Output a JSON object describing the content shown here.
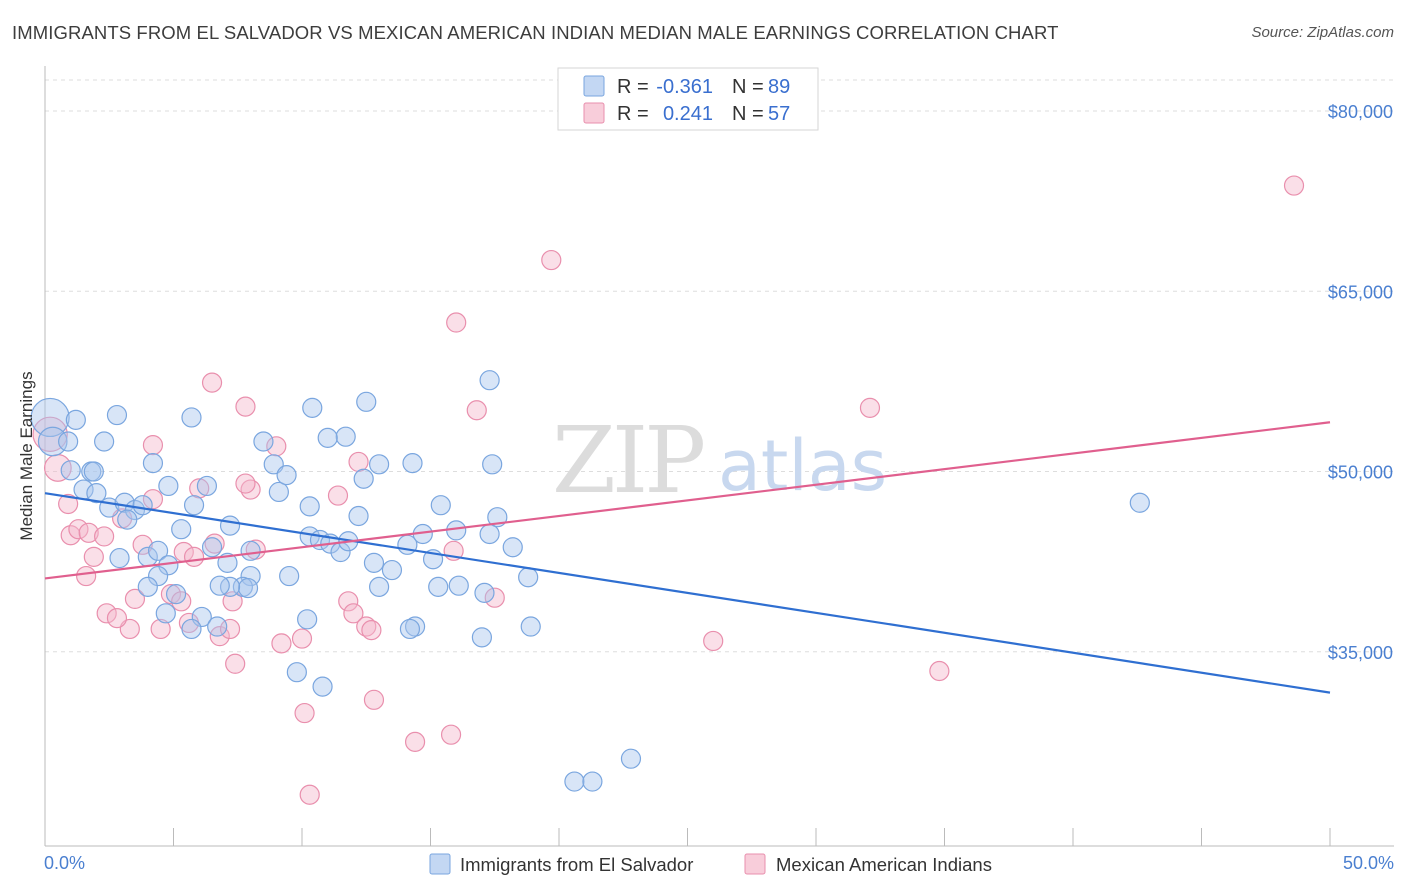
{
  "title": "IMMIGRANTS FROM EL SALVADOR VS MEXICAN AMERICAN INDIAN MEDIAN MALE EARNINGS CORRELATION CHART",
  "source": "Source: ZipAtlas.com",
  "watermark": {
    "zip": "ZIP",
    "atlas": "atlas"
  },
  "colors": {
    "blue_fill": "#a9c6ee",
    "blue_stroke": "#7aa6df",
    "blue_line": "#2f6fd1",
    "pink_fill": "#f5b8cb",
    "pink_stroke": "#e98fad",
    "pink_line": "#e05f8e",
    "grid": "#dddddd",
    "axis_text": "#4a7fd0"
  },
  "chart_data": {
    "type": "scatter",
    "title": "IMMIGRANTS FROM EL SALVADOR VS MEXICAN AMERICAN INDIAN MEDIAN MALE EARNINGS CORRELATION CHART",
    "xlabel": "",
    "ylabel": "Median Male Earnings",
    "xlim": [
      0,
      50
    ],
    "ylim": [
      20500,
      83000
    ],
    "x_tick_labels": {
      "left": "0.0%",
      "right": "50.0%"
    },
    "x_minor_ticks": [
      0,
      5,
      10,
      15,
      20,
      25,
      30,
      35,
      40,
      45,
      50
    ],
    "y_ticks": [
      {
        "value": 80000,
        "label": "$80,000"
      },
      {
        "value": 65000,
        "label": "$65,000"
      },
      {
        "value": 50000,
        "label": "$50,000"
      },
      {
        "value": 35000,
        "label": "$35,000"
      }
    ],
    "legend": [
      {
        "series": "Immigrants from El Salvador",
        "r_label": "R =",
        "r": "-0.361",
        "n_label": "N =",
        "n": "89"
      },
      {
        "series": "Mexican American Indians",
        "r_label": "R =",
        "r": "0.241",
        "n_label": "N =",
        "n": "57"
      }
    ],
    "series": [
      {
        "name": "Immigrants from El Salvador",
        "color": "blue",
        "trend": {
          "x0": 0,
          "y0": 48200,
          "x1": 50,
          "y1": 31600
        },
        "points": [
          {
            "x": 0.2,
            "y": 54500,
            "s": 2
          },
          {
            "x": 0.3,
            "y": 52500,
            "s": 1.5
          },
          {
            "x": 1.2,
            "y": 54300
          },
          {
            "x": 0.9,
            "y": 52500
          },
          {
            "x": 1.0,
            "y": 50100
          },
          {
            "x": 1.8,
            "y": 50000
          },
          {
            "x": 1.9,
            "y": 50000
          },
          {
            "x": 2.3,
            "y": 52500
          },
          {
            "x": 2.8,
            "y": 54700
          },
          {
            "x": 1.5,
            "y": 48500
          },
          {
            "x": 2.0,
            "y": 48200
          },
          {
            "x": 2.5,
            "y": 47000
          },
          {
            "x": 3.1,
            "y": 47400
          },
          {
            "x": 3.5,
            "y": 46800
          },
          {
            "x": 3.2,
            "y": 46000
          },
          {
            "x": 3.8,
            "y": 47200
          },
          {
            "x": 4.2,
            "y": 50700
          },
          {
            "x": 4.8,
            "y": 48800
          },
          {
            "x": 5.7,
            "y": 54500
          },
          {
            "x": 6.3,
            "y": 48800
          },
          {
            "x": 5.8,
            "y": 47200
          },
          {
            "x": 5.3,
            "y": 45200
          },
          {
            "x": 2.9,
            "y": 42800
          },
          {
            "x": 4.0,
            "y": 42900
          },
          {
            "x": 4.4,
            "y": 43400
          },
          {
            "x": 6.5,
            "y": 43700
          },
          {
            "x": 7.2,
            "y": 45500
          },
          {
            "x": 8.5,
            "y": 52500
          },
          {
            "x": 8.9,
            "y": 50600
          },
          {
            "x": 9.1,
            "y": 48300
          },
          {
            "x": 9.4,
            "y": 49700
          },
          {
            "x": 10.3,
            "y": 47100
          },
          {
            "x": 10.3,
            "y": 44600
          },
          {
            "x": 10.7,
            "y": 44300
          },
          {
            "x": 11.1,
            "y": 44000
          },
          {
            "x": 11.5,
            "y": 43300
          },
          {
            "x": 11.8,
            "y": 44200
          },
          {
            "x": 12.2,
            "y": 46300
          },
          {
            "x": 12.4,
            "y": 49400
          },
          {
            "x": 13.0,
            "y": 50600
          },
          {
            "x": 12.8,
            "y": 42400
          },
          {
            "x": 13.5,
            "y": 41800
          },
          {
            "x": 14.1,
            "y": 43900
          },
          {
            "x": 14.3,
            "y": 50700
          },
          {
            "x": 15.4,
            "y": 47200
          },
          {
            "x": 11.7,
            "y": 52900
          },
          {
            "x": 11.0,
            "y": 52800
          },
          {
            "x": 12.5,
            "y": 55800
          },
          {
            "x": 10.4,
            "y": 55300
          },
          {
            "x": 17.4,
            "y": 50600
          },
          {
            "x": 17.6,
            "y": 46200
          },
          {
            "x": 17.3,
            "y": 44800
          },
          {
            "x": 18.2,
            "y": 43700
          },
          {
            "x": 18.8,
            "y": 41200
          },
          {
            "x": 17.3,
            "y": 57600
          },
          {
            "x": 8.0,
            "y": 43400
          },
          {
            "x": 8.0,
            "y": 41300
          },
          {
            "x": 7.7,
            "y": 40400
          },
          {
            "x": 7.9,
            "y": 40300
          },
          {
            "x": 7.2,
            "y": 40400
          },
          {
            "x": 6.8,
            "y": 40500
          },
          {
            "x": 6.1,
            "y": 37900
          },
          {
            "x": 6.7,
            "y": 37100
          },
          {
            "x": 5.7,
            "y": 36900
          },
          {
            "x": 4.8,
            "y": 42200
          },
          {
            "x": 4.4,
            "y": 41300
          },
          {
            "x": 4.7,
            "y": 38200
          },
          {
            "x": 4.0,
            "y": 40400
          },
          {
            "x": 5.1,
            "y": 39800
          },
          {
            "x": 7.1,
            "y": 42400
          },
          {
            "x": 9.5,
            "y": 41300
          },
          {
            "x": 10.2,
            "y": 37700
          },
          {
            "x": 14.7,
            "y": 44800
          },
          {
            "x": 15.3,
            "y": 40400
          },
          {
            "x": 16.0,
            "y": 45100
          },
          {
            "x": 15.1,
            "y": 42700
          },
          {
            "x": 14.4,
            "y": 37100
          },
          {
            "x": 14.2,
            "y": 36900
          },
          {
            "x": 16.1,
            "y": 40500
          },
          {
            "x": 17.1,
            "y": 39900
          },
          {
            "x": 18.9,
            "y": 37100
          },
          {
            "x": 17.0,
            "y": 36200
          },
          {
            "x": 9.8,
            "y": 33300
          },
          {
            "x": 10.8,
            "y": 32100
          },
          {
            "x": 20.6,
            "y": 24200
          },
          {
            "x": 21.3,
            "y": 24200
          },
          {
            "x": 22.8,
            "y": 26100
          },
          {
            "x": 42.6,
            "y": 47400
          },
          {
            "x": 13.0,
            "y": 40400
          }
        ]
      },
      {
        "name": "Mexican American Indians",
        "color": "pink",
        "trend": {
          "x0": 0,
          "y0": 41100,
          "x1": 50,
          "y1": 54100
        },
        "points": [
          {
            "x": 0.2,
            "y": 53100,
            "s": 1.8
          },
          {
            "x": 0.5,
            "y": 50300,
            "s": 1.4
          },
          {
            "x": 0.9,
            "y": 47300
          },
          {
            "x": 1.0,
            "y": 44700
          },
          {
            "x": 1.3,
            "y": 45200
          },
          {
            "x": 1.7,
            "y": 44900
          },
          {
            "x": 1.9,
            "y": 42900
          },
          {
            "x": 2.3,
            "y": 44600
          },
          {
            "x": 2.4,
            "y": 38200
          },
          {
            "x": 3.0,
            "y": 46100
          },
          {
            "x": 3.3,
            "y": 36900
          },
          {
            "x": 3.5,
            "y": 39400
          },
          {
            "x": 1.6,
            "y": 41300
          },
          {
            "x": 2.8,
            "y": 37800
          },
          {
            "x": 3.8,
            "y": 43900
          },
          {
            "x": 4.2,
            "y": 47700
          },
          {
            "x": 4.5,
            "y": 36900
          },
          {
            "x": 4.9,
            "y": 39800
          },
          {
            "x": 5.3,
            "y": 39200
          },
          {
            "x": 5.4,
            "y": 43300
          },
          {
            "x": 5.6,
            "y": 37400
          },
          {
            "x": 5.8,
            "y": 42900
          },
          {
            "x": 6.0,
            "y": 48600
          },
          {
            "x": 6.6,
            "y": 44000
          },
          {
            "x": 6.8,
            "y": 36300
          },
          {
            "x": 7.3,
            "y": 39200
          },
          {
            "x": 7.2,
            "y": 36900
          },
          {
            "x": 7.4,
            "y": 34000
          },
          {
            "x": 8.0,
            "y": 48500
          },
          {
            "x": 8.2,
            "y": 43500
          },
          {
            "x": 7.8,
            "y": 49000
          },
          {
            "x": 6.5,
            "y": 57400
          },
          {
            "x": 7.8,
            "y": 55400
          },
          {
            "x": 4.2,
            "y": 52200
          },
          {
            "x": 9.0,
            "y": 52100
          },
          {
            "x": 9.2,
            "y": 35700
          },
          {
            "x": 10.0,
            "y": 36100
          },
          {
            "x": 10.1,
            "y": 29900
          },
          {
            "x": 10.3,
            "y": 23100
          },
          {
            "x": 11.4,
            "y": 48000
          },
          {
            "x": 11.8,
            "y": 39200
          },
          {
            "x": 12.0,
            "y": 38200
          },
          {
            "x": 12.2,
            "y": 50800
          },
          {
            "x": 12.5,
            "y": 37100
          },
          {
            "x": 12.7,
            "y": 36800
          },
          {
            "x": 12.8,
            "y": 31000
          },
          {
            "x": 14.4,
            "y": 27500
          },
          {
            "x": 15.8,
            "y": 28100
          },
          {
            "x": 15.9,
            "y": 43400
          },
          {
            "x": 16.0,
            "y": 62400
          },
          {
            "x": 16.8,
            "y": 55100
          },
          {
            "x": 19.7,
            "y": 67600
          },
          {
            "x": 26.0,
            "y": 35900
          },
          {
            "x": 32.1,
            "y": 55300
          },
          {
            "x": 34.8,
            "y": 33400
          },
          {
            "x": 48.6,
            "y": 73800
          },
          {
            "x": 17.5,
            "y": 39500
          }
        ]
      }
    ]
  },
  "bottom_legend": [
    {
      "label": "Immigrants from El Salvador",
      "color": "blue"
    },
    {
      "label": "Mexican American Indians",
      "color": "pink"
    }
  ]
}
